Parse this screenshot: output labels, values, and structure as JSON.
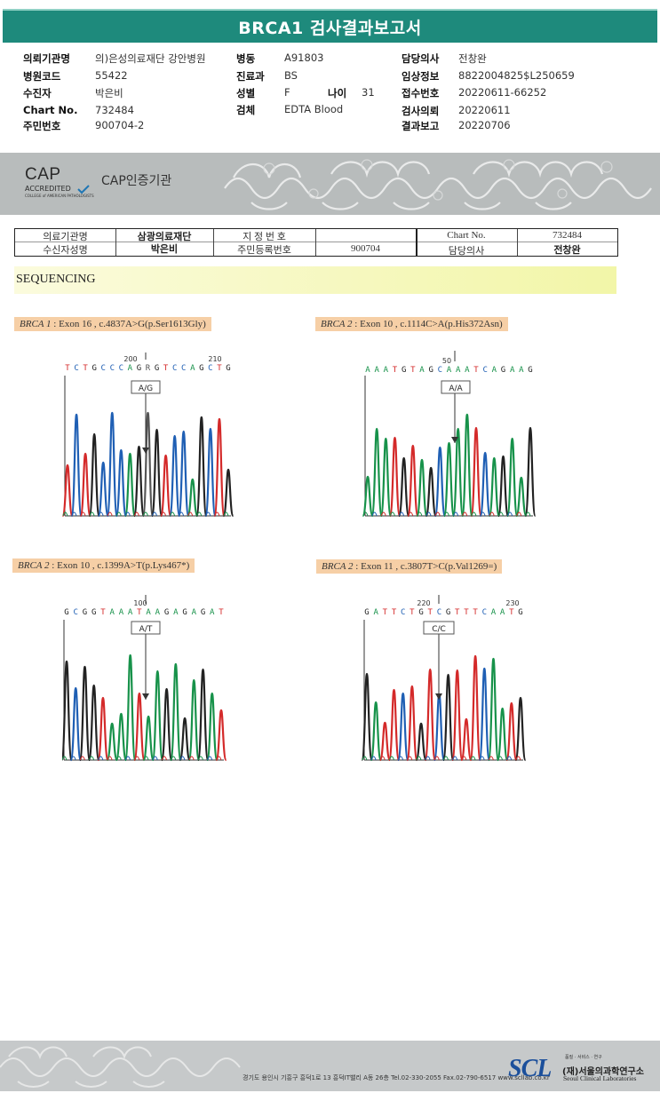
{
  "report": {
    "title": "BRCA1 검사결과보고서"
  },
  "patient_info": {
    "col1": [
      {
        "label": "의뢰기관명",
        "value": "의)은성의료재단 강안병원"
      },
      {
        "label": "병원코드",
        "value": "55422"
      },
      {
        "label": "수진자",
        "value": "박은비"
      },
      {
        "label": "Chart No.",
        "value": "732484"
      },
      {
        "label": "주민번호",
        "value": "900704-2"
      }
    ],
    "col2": [
      {
        "label": "병동",
        "value": "A91803"
      },
      {
        "label": "진료과",
        "value": "BS"
      },
      {
        "label": "성별",
        "value": "F"
      },
      {
        "label": "검체",
        "value": "EDTA Blood"
      }
    ],
    "age": {
      "label": "나이",
      "value": "31"
    },
    "col3": [
      {
        "label": "담당의사",
        "value": "전창완"
      },
      {
        "label": "임상정보",
        "value": "8822004825$L250659"
      },
      {
        "label": "접수번호",
        "value": "20220611-66252"
      },
      {
        "label": "검사의뢰",
        "value": "20220611"
      },
      {
        "label": "결과보고",
        "value": "20220706"
      }
    ]
  },
  "cap": {
    "logo_main": "CAP",
    "logo_sub": "ACCREDITED",
    "logo_small": "COLLEGE of AMERICAN PATHOLOGISTS",
    "label": "CAP인증기관"
  },
  "form_table": {
    "inst_label": "의료기관명",
    "inst_value": "삼광의료재단",
    "reg_label": "지 정 번 호",
    "chart_label": "Chart No.",
    "chart_value": "732484",
    "name_label": "수신자성명",
    "name_value": "박은비",
    "rrn_label": "주민등록번호",
    "rrn_value": "900704",
    "doctor_label": "담당의사",
    "doctor_value": "전창완"
  },
  "section": {
    "title": "SEQUENCING"
  },
  "variants": [
    {
      "gene": "BRCA 1",
      "detail": ": Exon 16 , c.4837A>G(p.Ser1613Gly)",
      "seq": "TCTGCCCAGRGTCCAGCTG",
      "pos1": "200",
      "pos2": "210",
      "call": "A/G"
    },
    {
      "gene": "BRCA 2",
      "detail": ": Exon 10 , c.1114C>A(p.His372Asn)",
      "seq": "AAATGTAGCAAATCAGAAG",
      "pos1": "50",
      "pos2": "",
      "call": "A/A"
    },
    {
      "gene": "BRCA 2",
      "detail": ": Exon 10 , c.1399A>T(p.Lys467*)",
      "seq": "GCGGTAAATAAGAGAGAT",
      "pos1": "100",
      "pos2": "",
      "call": "A/T"
    },
    {
      "gene": "BRCA 2",
      "detail": ": Exon 11 , c.3807T>C(p.Val1269=)",
      "seq": "GATTCTGTCGTTTCAATG",
      "pos1": "220",
      "pos2": "230",
      "call": "C/C"
    }
  ],
  "footer": {
    "address": "경기도 용인시 기흥구 흥덕1로 13 흥덕IT밸리 A동 26층   Tel.02-330-2055   Fax.02-790-6517   www.scllab.co.kr",
    "logo": "SCL",
    "slogan": "품질 · 서비스 · 연구",
    "org_kr": "(재)서울의과학연구소",
    "org_en": "Seoul Clinical Laboratories"
  },
  "colors": {
    "header": "#1e8a7c",
    "A": "#17924a",
    "C": "#1f5fb4",
    "G": "#222222",
    "T": "#d42a2a"
  }
}
